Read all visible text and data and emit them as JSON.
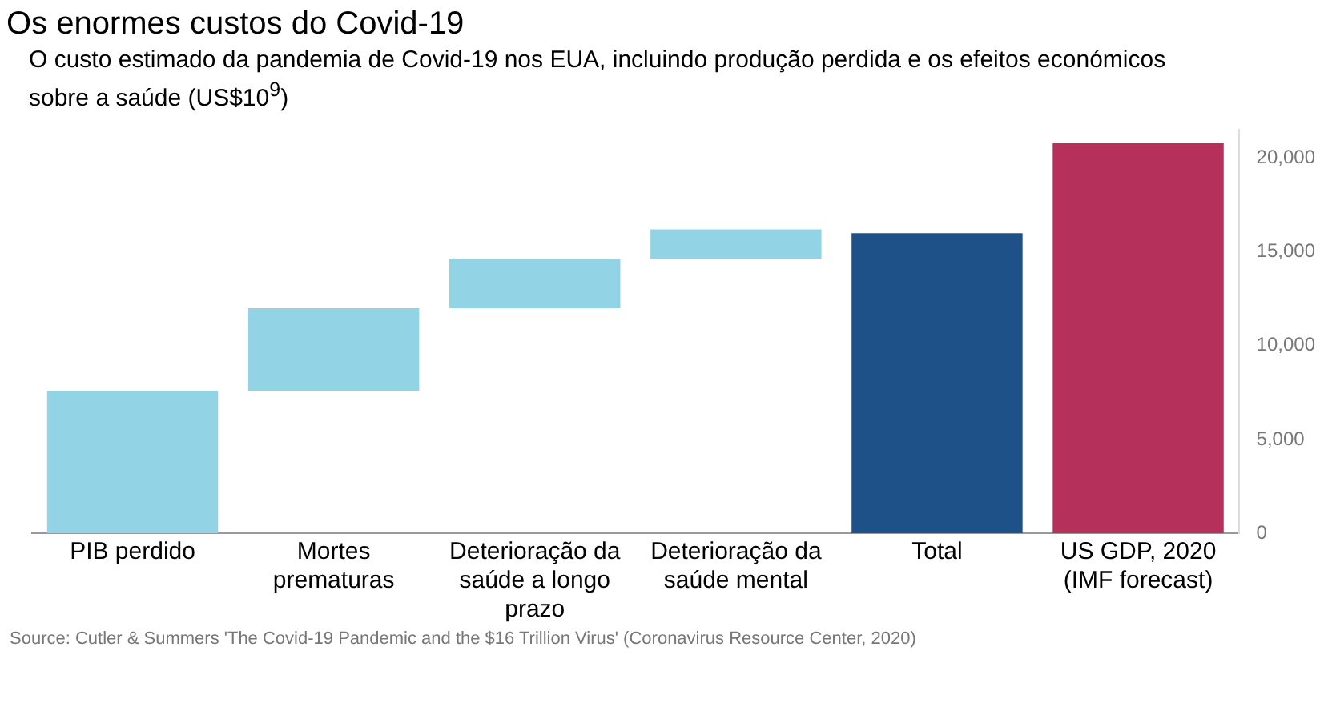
{
  "chart_data": {
    "type": "bar",
    "title": "Os enormes custos do Covid-19",
    "subtitle": "O custo estimado da pandemia de Covid-19 nos EUA, incluindo produção perdida e os efeitos económicos sobre a saúde (US$10$^{9}$)",
    "categories": [
      "PIB perdido",
      "Mortes prematuras",
      "Deterioração da saúde a longo prazo",
      "Deterioração da saúde mental",
      "Total",
      "US GDP, 2020 (IMF forecast)"
    ],
    "values": [
      7600,
      4400,
      2600,
      1600,
      16000,
      20800
    ],
    "base": [
      0,
      7600,
      12000,
      14600,
      0,
      0
    ],
    "colors": [
      "#93d3e6",
      "#93d3e6",
      "#93d3e6",
      "#93d3e6",
      "#1f5189",
      "#b5305a"
    ],
    "ylim": [
      0,
      21500
    ],
    "yticks": [
      0,
      {
        "value": 5000,
        "label": "5,000"
      },
      {
        "value": 10000,
        "label": "10,000"
      },
      {
        "value": 15000,
        "label": "15,000"
      },
      {
        "value": 20000,
        "label": "20,000"
      }
    ],
    "grid": false,
    "legend": false,
    "annotations": [
      "Source: Cutler & Summers 'The Covid-19 Pandemic and the $16 Trillion Virus' (Coronavirus Resource Center, 2020)"
    ]
  }
}
